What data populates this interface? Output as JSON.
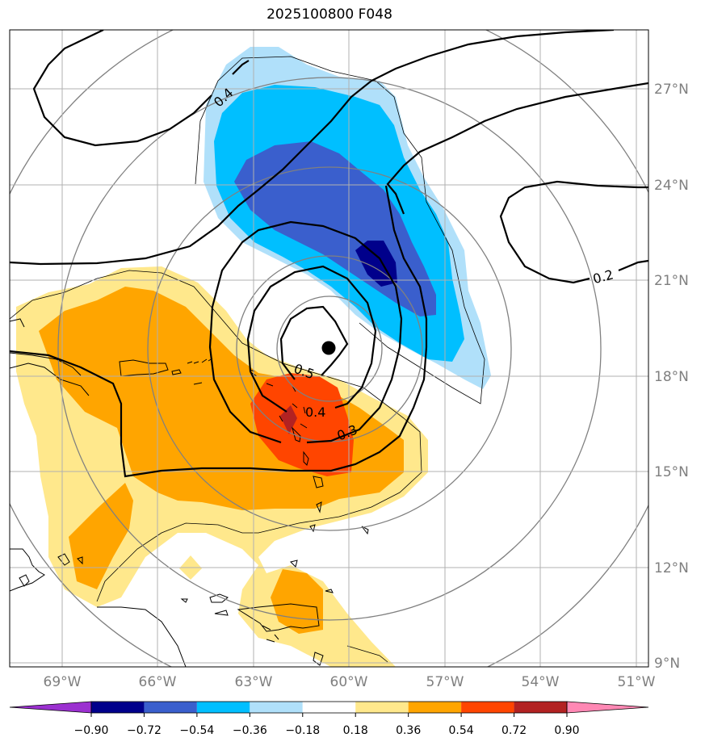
{
  "title": "2025100800 F048",
  "map": {
    "lat_labels": [
      "27°N",
      "24°N",
      "21°N",
      "18°N",
      "15°N",
      "12°N",
      "9°N"
    ],
    "lon_labels": [
      "69°W",
      "66°W",
      "63°W",
      "60°W",
      "57°W",
      "54°W",
      "51°W"
    ],
    "contour_labels": [
      "0.4",
      "0.2",
      "0.5",
      "0.4",
      "0.3"
    ],
    "storm_marker": "storm-center"
  },
  "colorbar": {
    "levels": [
      "−0.90",
      "−0.72",
      "−0.54",
      "−0.36",
      "−0.18",
      "0.18",
      "0.36",
      "0.54",
      "0.72",
      "0.90"
    ],
    "colors": [
      "#9b30d0",
      "#00008b",
      "#3a5fcd",
      "#00bfff",
      "#b0e0fa",
      "#ffffff",
      "#ffe88c",
      "#ffa500",
      "#ff4500",
      "#b22222",
      "#ff88b4"
    ]
  },
  "fill_colors": {
    "light_yellow": "#ffe88c",
    "orange": "#ffa500",
    "red_orange": "#ff4500",
    "dark_red": "#b22222",
    "light_blue": "#b0e0fa",
    "sky_blue": "#00bfff",
    "royal_blue": "#3a5fcd",
    "navy": "#00008b"
  }
}
